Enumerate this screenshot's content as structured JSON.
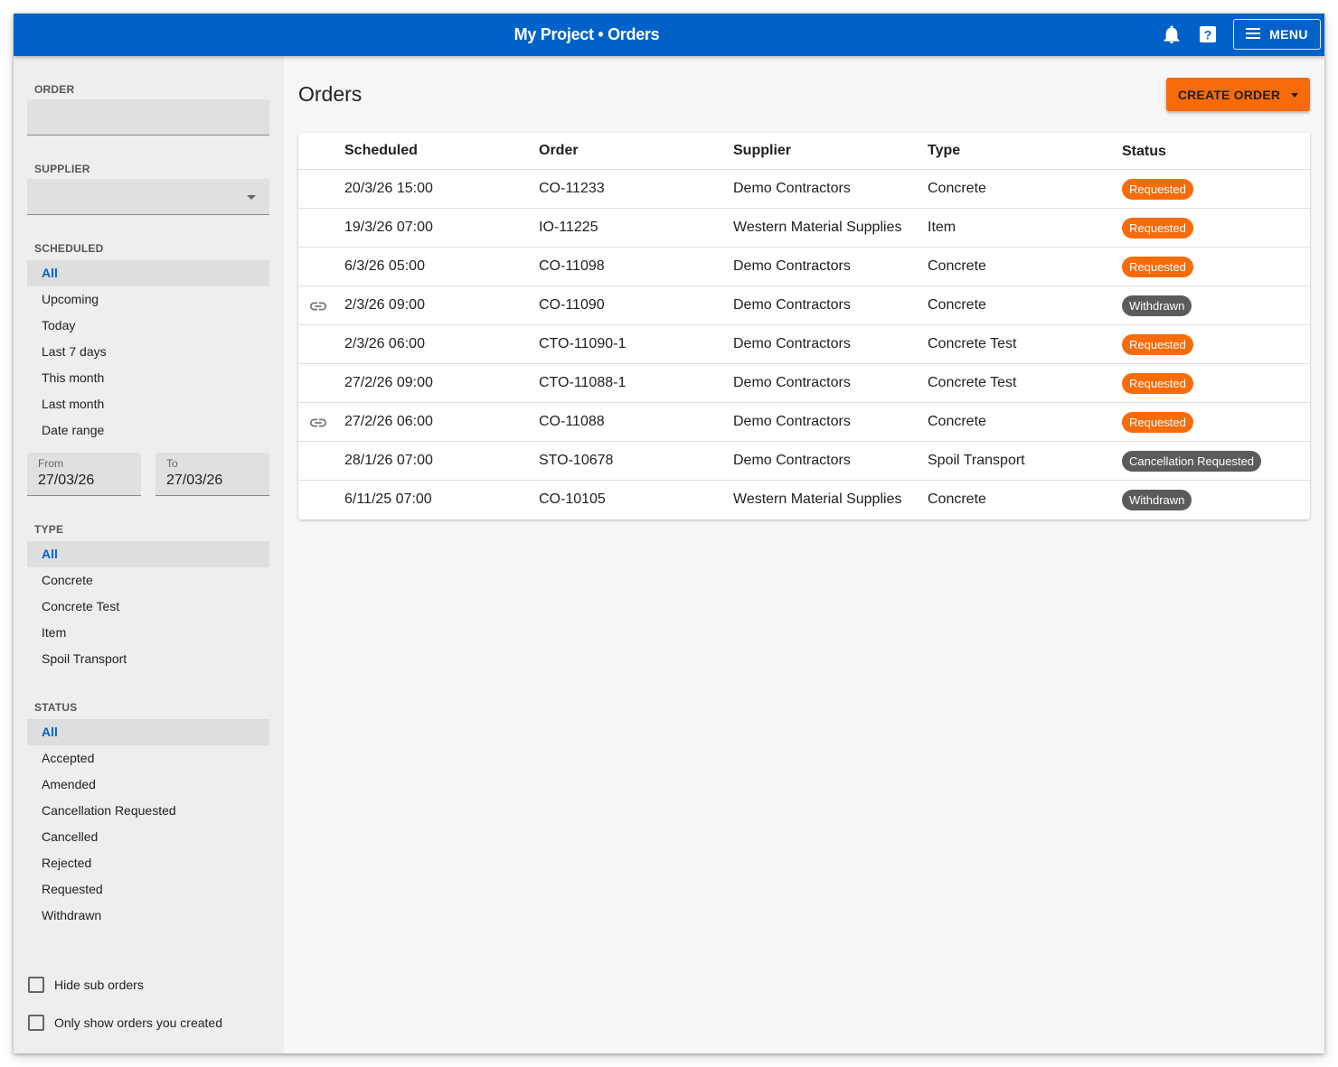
{
  "header": {
    "title": "My Project • Orders",
    "menu_label": "MENU",
    "color": "#0062c9"
  },
  "sidebar": {
    "order_label": "ORDER",
    "order_value": "",
    "supplier_label": "SUPPLIER",
    "supplier_value": "",
    "scheduled_label": "SCHEDULED",
    "scheduled_options": [
      "All",
      "Upcoming",
      "Today",
      "Last 7 days",
      "This month",
      "Last month",
      "Date range"
    ],
    "scheduled_selected": "All",
    "from_label": "From",
    "from_value": "27/03/26",
    "to_label": "To",
    "to_value": "27/03/26",
    "type_label": "TYPE",
    "type_options": [
      "All",
      "Concrete",
      "Concrete Test",
      "Item",
      "Spoil Transport"
    ],
    "type_selected": "All",
    "status_label": "STATUS",
    "status_options": [
      "All",
      "Accepted",
      "Amended",
      "Cancellation Requested",
      "Cancelled",
      "Rejected",
      "Requested",
      "Withdrawn"
    ],
    "status_selected": "All",
    "hide_sub_orders_label": "Hide sub orders",
    "hide_sub_orders_checked": false,
    "only_mine_label": "Only show orders you created",
    "only_mine_checked": false
  },
  "main": {
    "title": "Orders",
    "create_button_label": "CREATE ORDER",
    "create_button_color": "#f76b0a",
    "table": {
      "columns": [
        "Scheduled",
        "Order",
        "Supplier",
        "Type",
        "Status"
      ],
      "rows": [
        {
          "linked": false,
          "scheduled": "20/3/26 15:00",
          "order": "CO-11233",
          "supplier": "Demo Contractors",
          "type": "Concrete",
          "status": "Requested"
        },
        {
          "linked": false,
          "scheduled": "19/3/26 07:00",
          "order": "IO-11225",
          "supplier": "Western Material Supplies",
          "type": "Item",
          "status": "Requested"
        },
        {
          "linked": false,
          "scheduled": "6/3/26 05:00",
          "order": "CO-11098",
          "supplier": "Demo Contractors",
          "type": "Concrete",
          "status": "Requested"
        },
        {
          "linked": true,
          "scheduled": "2/3/26 09:00",
          "order": "CO-11090",
          "supplier": "Demo Contractors",
          "type": "Concrete",
          "status": "Withdrawn"
        },
        {
          "linked": false,
          "scheduled": "2/3/26 06:00",
          "order": "CTO-11090-1",
          "supplier": "Demo Contractors",
          "type": "Concrete Test",
          "status": "Requested"
        },
        {
          "linked": false,
          "scheduled": "27/2/26 09:00",
          "order": "CTO-11088-1",
          "supplier": "Demo Contractors",
          "type": "Concrete Test",
          "status": "Requested"
        },
        {
          "linked": true,
          "scheduled": "27/2/26 06:00",
          "order": "CO-11088",
          "supplier": "Demo Contractors",
          "type": "Concrete",
          "status": "Requested"
        },
        {
          "linked": false,
          "scheduled": "28/1/26 07:00",
          "order": "STO-10678",
          "supplier": "Demo Contractors",
          "type": "Spoil Transport",
          "status": "Cancellation Requested"
        },
        {
          "linked": false,
          "scheduled": "6/11/25 07:00",
          "order": "CO-10105",
          "supplier": "Western Material Supplies",
          "type": "Concrete",
          "status": "Withdrawn"
        }
      ]
    },
    "status_colors": {
      "Requested": "#f76b0a",
      "Withdrawn": "#5b5b5b",
      "Cancellation Requested": "#5b5b5b"
    },
    "icons": {
      "row_link": "link-icon",
      "header": [
        "bell-icon",
        "help-icon",
        "hamburger-icon"
      ]
    }
  }
}
